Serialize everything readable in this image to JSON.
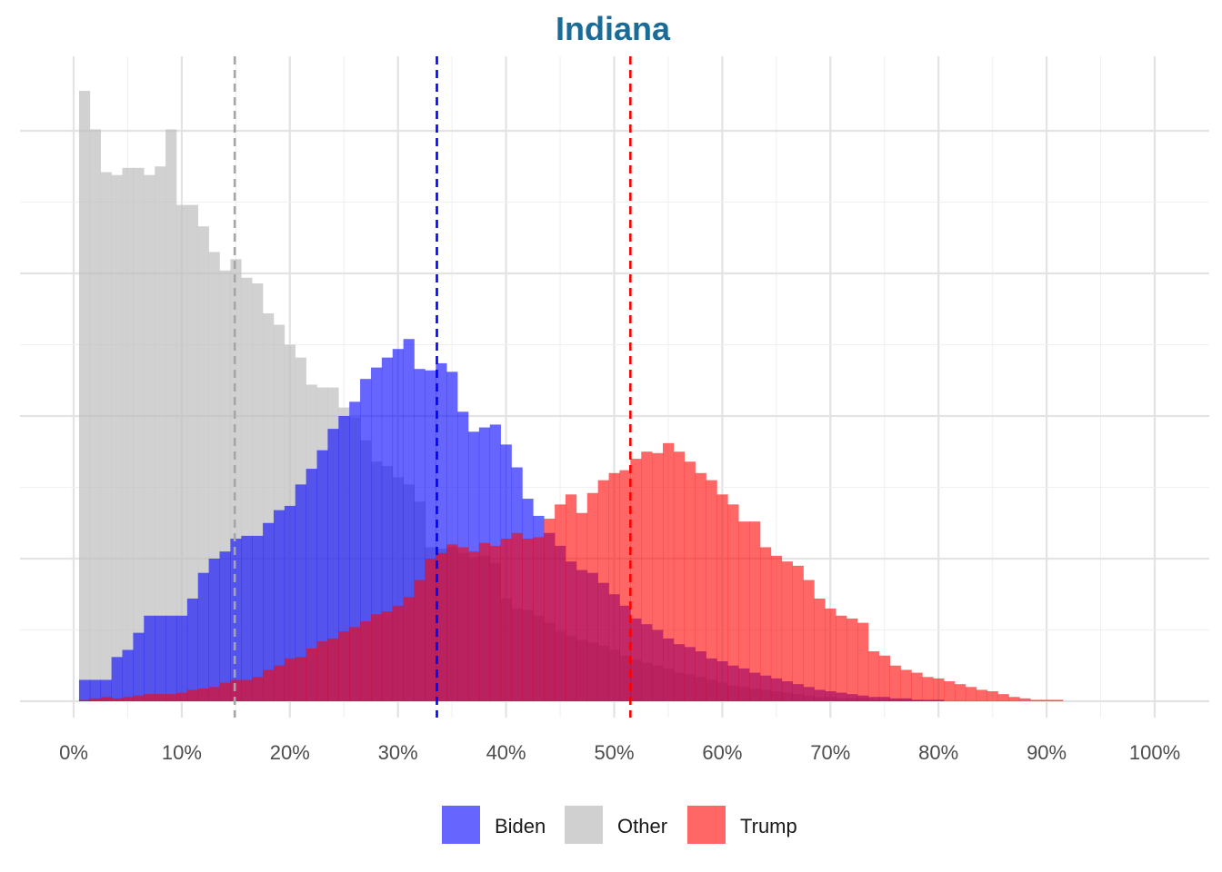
{
  "chart_data": {
    "type": "histogram",
    "title": "Indiana",
    "xlabel": "",
    "ylabel": "",
    "xlim": [
      0,
      1
    ],
    "x_ticks": [
      "0%",
      "10%",
      "20%",
      "30%",
      "40%",
      "50%",
      "60%",
      "70%",
      "80%",
      "90%",
      "100%"
    ],
    "y_axis_labels_shown": false,
    "bin_width": 0.01,
    "count_ylim": [
      0,
      420
    ],
    "y_gridlines": [
      0,
      100,
      200,
      300,
      400
    ],
    "series": [
      {
        "name": "Other",
        "color": "#BEBEBE",
        "opacity": 0.7,
        "mean_line": 0.149,
        "mean_line_color": "#A6A6A6",
        "x_start": 0.005,
        "values": [
          428,
          401,
          371,
          369,
          374,
          374,
          369,
          375,
          401,
          348,
          348,
          333,
          315,
          302,
          310,
          297,
          293,
          272,
          264,
          250,
          241,
          222,
          220,
          220,
          206,
          199,
          183,
          168,
          165,
          157,
          152,
          140,
          108,
          107,
          108,
          104,
          101,
          102,
          97,
          72,
          65,
          64,
          60,
          55,
          49,
          46,
          43,
          41,
          39,
          36,
          32,
          29,
          27,
          25,
          23,
          20,
          19,
          17,
          15,
          13,
          11,
          10,
          9,
          8,
          7,
          6,
          5,
          4,
          3,
          3,
          2,
          2,
          2,
          1,
          1,
          1,
          1,
          1,
          0,
          0
        ]
      },
      {
        "name": "Biden",
        "color": "#0000FF",
        "opacity": 0.6,
        "mean_line": 0.336,
        "mean_line_color": "#0000FF",
        "x_start": 0.005,
        "values": [
          15,
          15,
          15,
          31,
          36,
          48,
          60,
          60,
          60,
          60,
          72,
          90,
          100,
          105,
          114,
          116,
          116,
          125,
          134,
          137,
          152,
          163,
          176,
          191,
          200,
          210,
          226,
          234,
          241,
          247,
          254,
          233,
          232,
          237,
          231,
          203,
          189,
          192,
          194,
          180,
          164,
          142,
          130,
          118,
          109,
          98,
          92,
          90,
          83,
          75,
          67,
          58,
          54,
          50,
          44,
          40,
          38,
          35,
          30,
          28,
          25,
          23,
          20,
          18,
          16,
          14,
          12,
          10,
          8,
          7,
          6,
          5,
          4,
          3,
          3,
          2,
          2,
          1,
          1,
          1,
          0,
          0
        ]
      },
      {
        "name": "Trump",
        "color": "#FF0000",
        "opacity": 0.6,
        "mean_line": 0.515,
        "mean_line_color": "#FF0000",
        "x_start": 0.005,
        "values": [
          1,
          2,
          3,
          2,
          3,
          4,
          5,
          5,
          5,
          6,
          8,
          9,
          10,
          13,
          15,
          15,
          17,
          22,
          25,
          30,
          31,
          37,
          42,
          44,
          49,
          52,
          56,
          61,
          63,
          67,
          73,
          85,
          100,
          104,
          110,
          108,
          105,
          111,
          109,
          114,
          118,
          114,
          115,
          128,
          138,
          145,
          132,
          146,
          155,
          160,
          162,
          170,
          175,
          174,
          181,
          175,
          168,
          160,
          155,
          145,
          138,
          126,
          126,
          108,
          102,
          98,
          95,
          85,
          72,
          65,
          60,
          58,
          55,
          35,
          32,
          25,
          22,
          20,
          17,
          16,
          14,
          12,
          10,
          8,
          7,
          5,
          3,
          2,
          1,
          1,
          1,
          0
        ]
      }
    ],
    "legend": {
      "position": "bottom",
      "entries": [
        {
          "label": "Biden",
          "color": "#6666FF"
        },
        {
          "label": "Other",
          "color": "#D0D0D0"
        },
        {
          "label": "Trump",
          "color": "#FF6666"
        }
      ]
    },
    "title_color": "#1A6B96",
    "grid": true
  }
}
